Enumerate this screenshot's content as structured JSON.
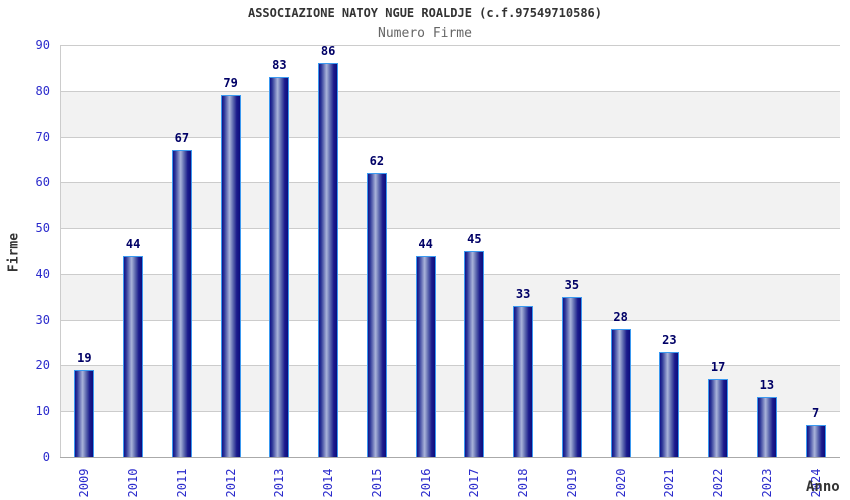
{
  "chart_data": {
    "type": "bar",
    "title": "ASSOCIAZIONE NATOY NGUE ROALDJE (c.f.97549710586)",
    "subtitle": "Numero Firme",
    "xlabel": "Anno",
    "ylabel": "Firme",
    "categories": [
      "2009",
      "2010",
      "2011",
      "2012",
      "2013",
      "2014",
      "2015",
      "2016",
      "2017",
      "2018",
      "2019",
      "2020",
      "2021",
      "2022",
      "2023",
      "2024"
    ],
    "values": [
      19,
      44,
      67,
      79,
      83,
      86,
      62,
      44,
      45,
      33,
      35,
      28,
      23,
      17,
      13,
      7
    ],
    "ylim": [
      0,
      90
    ],
    "ytick_step": 10,
    "grid": true,
    "alternating_bands": true,
    "legend": "none",
    "colors": {
      "title_text": "#333333",
      "subtitle_text": "#666666",
      "axis_title_text": "#333333",
      "tick_label_blue": "#2b2bcc",
      "value_label_navy": "#000066",
      "band_gray": "#f2f2f2",
      "gridline_gray": "#cccccc",
      "axis_line_gray": "#aaaaaa",
      "bar_border_lightblue": "#3a99f0",
      "bar_edge_navy": "#12128a",
      "bar_center_highlight": "#aab4da"
    }
  }
}
